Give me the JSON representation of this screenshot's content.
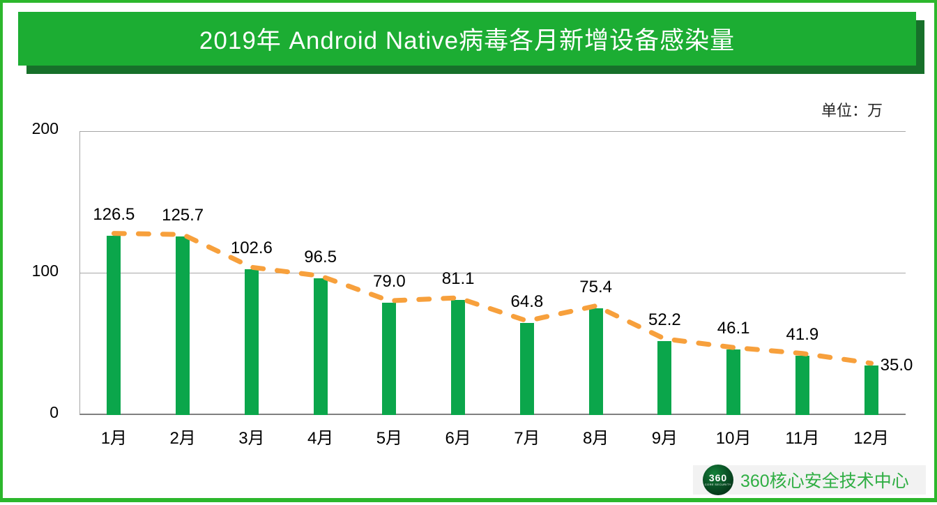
{
  "header": {
    "title": "2019年 Android Native病毒各月新增设备感染量"
  },
  "chart_data": {
    "type": "bar",
    "title": "2019年 Android Native病毒各月新增设备感染量",
    "unit_label": "单位：万",
    "categories": [
      "1月",
      "2月",
      "3月",
      "4月",
      "5月",
      "6月",
      "7月",
      "8月",
      "9月",
      "10月",
      "11月",
      "12月"
    ],
    "values": [
      126.5,
      125.7,
      102.6,
      96.5,
      79.0,
      81.1,
      64.8,
      75.4,
      52.2,
      46.1,
      41.9,
      35.0
    ],
    "value_labels": [
      "126.5",
      "125.7",
      "102.6",
      "96.5",
      "79.0",
      "81.1",
      "64.8",
      "75.4",
      "52.2",
      "46.1",
      "41.9",
      "35.0"
    ],
    "overlay_line": {
      "type": "line",
      "style": "dashed",
      "values_same_as_bars": true
    },
    "ylabel": "",
    "xlabel": "",
    "ylim": [
      0,
      200
    ],
    "yticks": [
      "0",
      "100",
      "200"
    ],
    "grid": "horizontal gridlines at 100 and 200, open right side",
    "legend": "none",
    "colors": {
      "bar": "#0BA64B",
      "line": "#F7A03C",
      "gridline": "#A6A6A6",
      "axis": "#7F7F7F"
    }
  },
  "theme": {
    "banner_green": "#1CAD33",
    "banner_shadow_green": "#17702A",
    "page_border_green": "#2CB72C",
    "footer_bg": "#F2F2F2",
    "footer_text_green": "#2FAE43"
  },
  "footer": {
    "text": "360核心安全技术中心",
    "logo": {
      "text": "360",
      "subtext": "CORE SECURITY"
    }
  }
}
